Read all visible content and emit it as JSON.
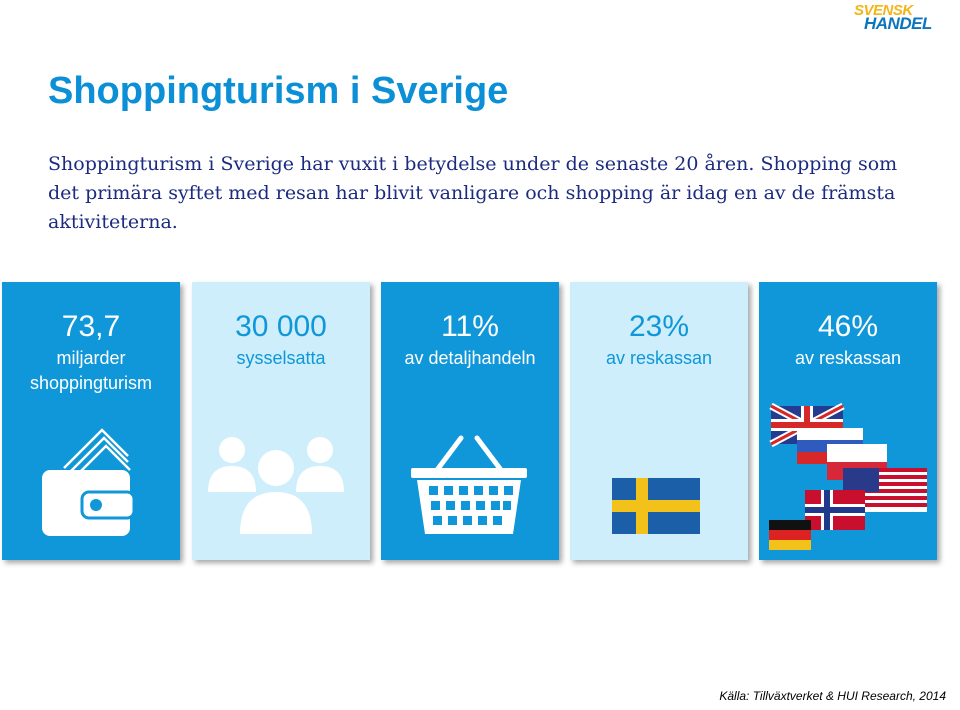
{
  "logo": {
    "line1": "SVENSK",
    "line2": "HANDEL"
  },
  "title": "Shoppingturism i Sverige",
  "intro": "Shoppingturism i Sverige har vuxit i betydelse under de senaste 20 åren. Shopping som det primära syftet med resan har blivit vanligare och shopping är idag en av de främsta aktiviteterna.",
  "cards": [
    {
      "value": "73,7",
      "label": "miljarder shoppingturism",
      "icon": "wallet-icon"
    },
    {
      "value": "30 000",
      "label": "sysselsatta",
      "icon": "people-icon"
    },
    {
      "value": "11%",
      "label": "av detaljhandeln",
      "icon": "shopping-basket-icon"
    },
    {
      "value": "23%",
      "label": "av reskassan",
      "icon": "swedish-flag-icon"
    },
    {
      "value": "46%",
      "label": "av reskassan",
      "icon": "foreign-flags-icon"
    }
  ],
  "colors": {
    "accent": "#0f97da",
    "light": "#cdeefa",
    "text": "#1c2b80"
  },
  "source": "Källa: Tillväxtverket & HUI Research, 2014"
}
